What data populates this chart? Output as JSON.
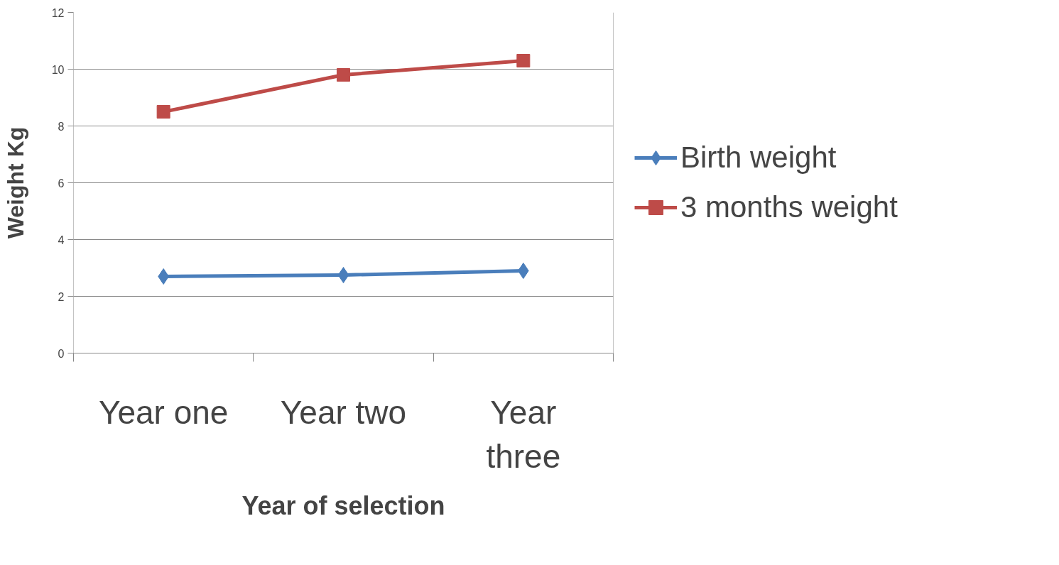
{
  "chart_data": {
    "type": "line",
    "xlabel": "Year of selection",
    "ylabel": "Weight Kg",
    "categories": [
      "Year one",
      "Year two",
      "Year three"
    ],
    "series": [
      {
        "name": "Birth weight",
        "color": "#4a7ebb",
        "values": [
          2.7,
          2.75,
          2.9
        ],
        "marker": "diamond"
      },
      {
        "name": "3 months weight",
        "color": "#be4b48",
        "values": [
          8.5,
          9.8,
          10.3
        ],
        "marker": "square"
      }
    ],
    "ylim": [
      0,
      12
    ],
    "yticks": [
      0,
      2,
      4,
      6,
      8,
      10,
      12
    ],
    "grid": "y",
    "legend": "right",
    "line_style": "solid"
  }
}
